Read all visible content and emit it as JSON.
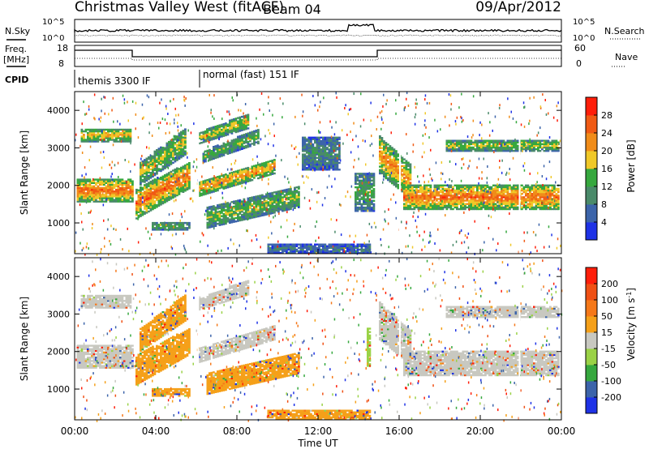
{
  "header": {
    "station": "Christmas Valley West (fitACF)",
    "beam": "Beam 04",
    "date": "09/Apr/2012"
  },
  "params": {
    "nsky_label": "N.Sky",
    "nsearch_label": "N.Search",
    "noise_ticks": [
      "10^5",
      "10^0"
    ],
    "freq_label_1": "Freq.",
    "freq_label_2": "[MHz]",
    "freq_ticks": [
      "18",
      "8"
    ],
    "nave_label": "Nave",
    "nave_ticks": [
      "60",
      "0"
    ],
    "cpid_label": "CPID",
    "cpid_1": "themis 3300 IF",
    "cpid_2": "normal (fast) 151 IF"
  },
  "chart_data": [
    {
      "type": "heatmap",
      "title": "",
      "ylabel": "Slant Range [km]",
      "xlabel": "Time UT",
      "x_ticks": [
        "00:00",
        "04:00",
        "08:00",
        "12:00",
        "16:00",
        "20:00",
        "00:00"
      ],
      "x_range_hours": [
        0,
        24
      ],
      "y_ticks": [
        1000,
        2000,
        3000,
        4000
      ],
      "y_range_km": [
        180,
        4500
      ],
      "colorbar": {
        "label": "Power [dB]",
        "ticks": [
          "4",
          "8",
          "12",
          "16",
          "20",
          "24",
          "28"
        ],
        "colors": [
          "#1e32e6",
          "#3c64aa",
          "#4a8a6a",
          "#36a83e",
          "#f0c828",
          "#f08c19",
          "#f05a14",
          "#ff1e0a"
        ]
      },
      "bands": [
        {
          "t": [
            0.1,
            2.9
          ],
          "r": [
            1550,
            2150
          ],
          "v": 0.85
        },
        {
          "t": [
            0.3,
            2.8
          ],
          "r": [
            3150,
            3500
          ],
          "v": 0.65
        },
        {
          "t": [
            3.0,
            5.6
          ],
          "r": [
            1100,
            1900
          ],
          "r2": [
            1900,
            2600
          ],
          "v": 0.85
        },
        {
          "t": [
            3.2,
            5.4
          ],
          "r": [
            2000,
            2600
          ],
          "r2": [
            2800,
            3500
          ],
          "v": 0.55
        },
        {
          "t": [
            3.8,
            5.6
          ],
          "r": [
            800,
            1000
          ],
          "v": 0.4
        },
        {
          "t": [
            6.1,
            8.5
          ],
          "r": [
            3100,
            3400
          ],
          "r2": [
            3500,
            3900
          ],
          "v": 0.6
        },
        {
          "t": [
            6.1,
            9.8
          ],
          "r": [
            1700,
            2100
          ],
          "r2": [
            2300,
            2700
          ],
          "v": 0.75
        },
        {
          "t": [
            6.3,
            9.0
          ],
          "r": [
            2600,
            2900
          ],
          "r2": [
            3100,
            3500
          ],
          "v": 0.45
        },
        {
          "t": [
            6.5,
            11.0
          ],
          "r": [
            850,
            1400
          ],
          "r2": [
            1400,
            1950
          ],
          "v": 0.5
        },
        {
          "t": [
            15.0,
            16.6
          ],
          "r": [
            2300,
            3300
          ],
          "r2": [
            1600,
            2500
          ],
          "v": 0.75
        },
        {
          "t": [
            16.2,
            23.9
          ],
          "r": [
            1350,
            2000
          ],
          "v": 0.85
        },
        {
          "t": [
            18.3,
            23.9
          ],
          "r": [
            2900,
            3200
          ],
          "v": 0.55
        },
        {
          "t": [
            13.8,
            14.7
          ],
          "r": [
            1300,
            2300
          ],
          "v": 0.4
        },
        {
          "t": [
            11.2,
            13.0
          ],
          "r": [
            2400,
            3300
          ],
          "v": 0.3
        },
        {
          "t": [
            9.5,
            14.5
          ],
          "r": [
            180,
            420
          ],
          "v": 0.2
        }
      ]
    },
    {
      "type": "heatmap",
      "title": "",
      "ylabel": "Slant Range [km]",
      "xlabel": "Time UT",
      "x_ticks": [
        "00:00",
        "04:00",
        "08:00",
        "12:00",
        "16:00",
        "20:00",
        "00:00"
      ],
      "x_range_hours": [
        0,
        24
      ],
      "y_ticks": [
        1000,
        2000,
        3000,
        4000
      ],
      "y_range_km": [
        180,
        4500
      ],
      "colorbar": {
        "label": "Velocity [m s^-1]",
        "ticks": [
          "200",
          "100",
          "50",
          "15",
          "-15",
          "-50",
          "-100",
          "-200"
        ],
        "colors": [
          "#1e32e6",
          "#3c64aa",
          "#36a83e",
          "#9ad246",
          "#c8c8c0",
          "#f5a019",
          "#f57819",
          "#f05014",
          "#ff1e0a"
        ]
      },
      "bands": [
        {
          "t": [
            0.1,
            2.9
          ],
          "r": [
            1550,
            2150
          ],
          "v": 4
        },
        {
          "t": [
            0.3,
            2.8
          ],
          "r": [
            3150,
            3500
          ],
          "v": 4
        },
        {
          "t": [
            3.0,
            5.6
          ],
          "r": [
            1100,
            1900
          ],
          "r2": [
            1900,
            2600
          ],
          "v": 5
        },
        {
          "t": [
            3.2,
            5.4
          ],
          "r": [
            2000,
            2600
          ],
          "r2": [
            2800,
            3500
          ],
          "v": 5
        },
        {
          "t": [
            3.8,
            5.6
          ],
          "r": [
            800,
            1000
          ],
          "v": 5
        },
        {
          "t": [
            6.1,
            8.5
          ],
          "r": [
            3100,
            3400
          ],
          "r2": [
            3500,
            3900
          ],
          "v": 4
        },
        {
          "t": [
            6.1,
            9.8
          ],
          "r": [
            1700,
            2100
          ],
          "r2": [
            2300,
            2700
          ],
          "v": 4
        },
        {
          "t": [
            6.5,
            11.0
          ],
          "r": [
            850,
            1400
          ],
          "r2": [
            1400,
            1950
          ],
          "v": 5
        },
        {
          "t": [
            15.0,
            16.6
          ],
          "r": [
            2300,
            3300
          ],
          "r2": [
            1600,
            2500
          ],
          "v": 4
        },
        {
          "t": [
            16.2,
            23.9
          ],
          "r": [
            1350,
            2000
          ],
          "v": 4
        },
        {
          "t": [
            18.3,
            23.9
          ],
          "r": [
            2900,
            3200
          ],
          "v": 4
        },
        {
          "t": [
            9.5,
            14.5
          ],
          "r": [
            180,
            420
          ],
          "v": 5
        },
        {
          "t": [
            14.4,
            14.6
          ],
          "r": [
            1600,
            2600
          ],
          "v": 3
        }
      ]
    }
  ]
}
